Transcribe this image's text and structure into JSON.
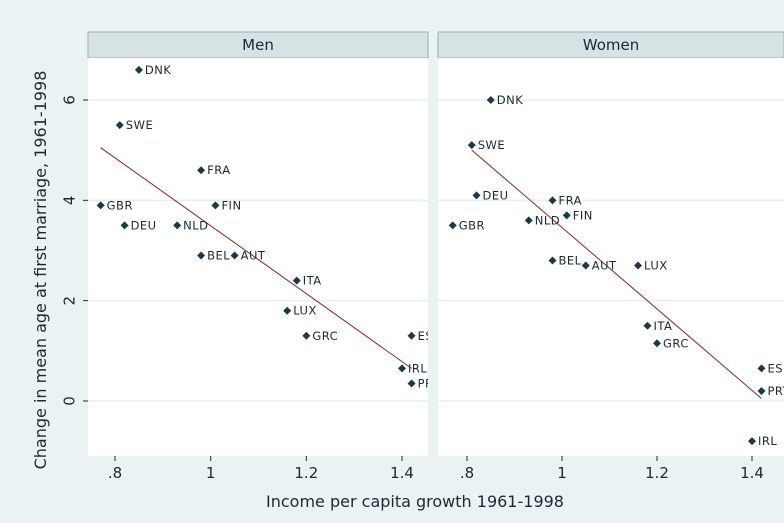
{
  "chart_data": {
    "type": "scatter",
    "xlabel": "Income per capita growth 1961-1998",
    "ylabel": "Change in mean age at first marriage, 1961-1998",
    "xlim": [
      0.75,
      1.43
    ],
    "ylim": [
      -1.0,
      7.0
    ],
    "xticks": [
      0.8,
      1,
      1.2,
      1.4
    ],
    "xtick_labels": [
      ".8",
      "1",
      "1.2",
      "1.4"
    ],
    "yticks": [
      0,
      2,
      4,
      6
    ],
    "ytick_labels": [
      "0",
      "2",
      "4",
      "6"
    ],
    "grid": true,
    "panels": [
      {
        "title": "Men",
        "fit_line": {
          "x": [
            0.77,
            1.42
          ],
          "y": [
            5.05,
            0.65
          ]
        },
        "points": [
          {
            "label": "DNK",
            "x": 0.85,
            "y": 6.6
          },
          {
            "label": "SWE",
            "x": 0.81,
            "y": 5.5
          },
          {
            "label": "FRA",
            "x": 0.98,
            "y": 4.6
          },
          {
            "label": "GBR",
            "x": 0.77,
            "y": 3.9
          },
          {
            "label": "FIN",
            "x": 1.01,
            "y": 3.9
          },
          {
            "label": "DEU",
            "x": 0.82,
            "y": 3.5
          },
          {
            "label": "NLD",
            "x": 0.93,
            "y": 3.5
          },
          {
            "label": "BEL",
            "x": 0.98,
            "y": 2.9
          },
          {
            "label": "AUT",
            "x": 1.05,
            "y": 2.9
          },
          {
            "label": "ITA",
            "x": 1.18,
            "y": 2.4
          },
          {
            "label": "LUX",
            "x": 1.16,
            "y": 1.8
          },
          {
            "label": "GRC",
            "x": 1.2,
            "y": 1.3
          },
          {
            "label": "ESP",
            "x": 1.42,
            "y": 1.3
          },
          {
            "label": "IRL",
            "x": 1.4,
            "y": 0.65
          },
          {
            "label": "PRT",
            "x": 1.42,
            "y": 0.35
          }
        ]
      },
      {
        "title": "Women",
        "fit_line": {
          "x": [
            0.81,
            1.42
          ],
          "y": [
            5.0,
            0.05
          ]
        },
        "points": [
          {
            "label": "DNK",
            "x": 0.85,
            "y": 6.0
          },
          {
            "label": "SWE",
            "x": 0.81,
            "y": 5.1
          },
          {
            "label": "DEU",
            "x": 0.82,
            "y": 4.1
          },
          {
            "label": "FRA",
            "x": 0.98,
            "y": 4.0
          },
          {
            "label": "FIN",
            "x": 1.01,
            "y": 3.7
          },
          {
            "label": "NLD",
            "x": 0.93,
            "y": 3.6
          },
          {
            "label": "GBR",
            "x": 0.77,
            "y": 3.5
          },
          {
            "label": "BEL",
            "x": 0.98,
            "y": 2.8
          },
          {
            "label": "AUT",
            "x": 1.05,
            "y": 2.7
          },
          {
            "label": "LUX",
            "x": 1.16,
            "y": 2.7
          },
          {
            "label": "ITA",
            "x": 1.18,
            "y": 1.5
          },
          {
            "label": "GRC",
            "x": 1.2,
            "y": 1.15
          },
          {
            "label": "ESP",
            "x": 1.42,
            "y": 0.65
          },
          {
            "label": "PRT",
            "x": 1.42,
            "y": 0.2
          },
          {
            "label": "IRL",
            "x": 1.4,
            "y": -0.8
          }
        ]
      }
    ]
  },
  "colors": {
    "background": "#eaf2f3",
    "plot_area": "#ffffff",
    "panel_header": "#d7e2e5",
    "panel_header_border": "#9aaeb3",
    "grid": "#e8eef0",
    "marker": "#1a3a4a",
    "fit_line": "#8b2525",
    "text": "#1a2a33"
  }
}
